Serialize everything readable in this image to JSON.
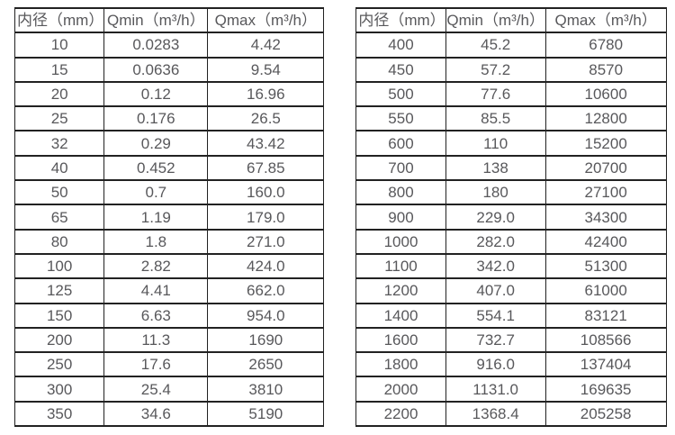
{
  "colors": {
    "background": "#ffffff",
    "border": "#222222",
    "text": "#58585b"
  },
  "tables": [
    {
      "name": "flow-rate-table-small-diameters",
      "headers": [
        "内径（mm）",
        "Qmin（m³/h）",
        "Qmax（m³/h）"
      ],
      "rows": [
        [
          "10",
          "0.0283",
          "4.42"
        ],
        [
          "15",
          "0.0636",
          "9.54"
        ],
        [
          "20",
          "0.12",
          "16.96"
        ],
        [
          "25",
          "0.176",
          "26.5"
        ],
        [
          "32",
          "0.29",
          "43.42"
        ],
        [
          "40",
          "0.452",
          "67.85"
        ],
        [
          "50",
          "0.7",
          "160.0"
        ],
        [
          "65",
          "1.19",
          "179.0"
        ],
        [
          "80",
          "1.8",
          "271.0"
        ],
        [
          "100",
          "2.82",
          "424.0"
        ],
        [
          "125",
          "4.41",
          "662.0"
        ],
        [
          "150",
          "6.63",
          "954.0"
        ],
        [
          "200",
          "11.3",
          "1690"
        ],
        [
          "250",
          "17.6",
          "2650"
        ],
        [
          "300",
          "25.4",
          "3810"
        ],
        [
          "350",
          "34.6",
          "5190"
        ]
      ]
    },
    {
      "name": "flow-rate-table-large-diameters",
      "headers": [
        "内径（mm）",
        "Qmin（m³/h）",
        "Qmax（m³/h）"
      ],
      "rows": [
        [
          "400",
          "45.2",
          "6780"
        ],
        [
          "450",
          "57.2",
          "8570"
        ],
        [
          "500",
          "77.6",
          "10600"
        ],
        [
          "550",
          "85.5",
          "12800"
        ],
        [
          "600",
          "110",
          "15200"
        ],
        [
          "700",
          "138",
          "20700"
        ],
        [
          "800",
          "180",
          "27100"
        ],
        [
          "900",
          "229.0",
          "34300"
        ],
        [
          "1000",
          "282.0",
          "42400"
        ],
        [
          "1100",
          "342.0",
          "51300"
        ],
        [
          "1200",
          "407.0",
          "61000"
        ],
        [
          "1400",
          "554.1",
          "83121"
        ],
        [
          "1600",
          "732.7",
          "108566"
        ],
        [
          "1800",
          "916.0",
          "137404"
        ],
        [
          "2000",
          "1131.0",
          "169635"
        ],
        [
          "2200",
          "1368.4",
          "205258"
        ]
      ]
    }
  ]
}
